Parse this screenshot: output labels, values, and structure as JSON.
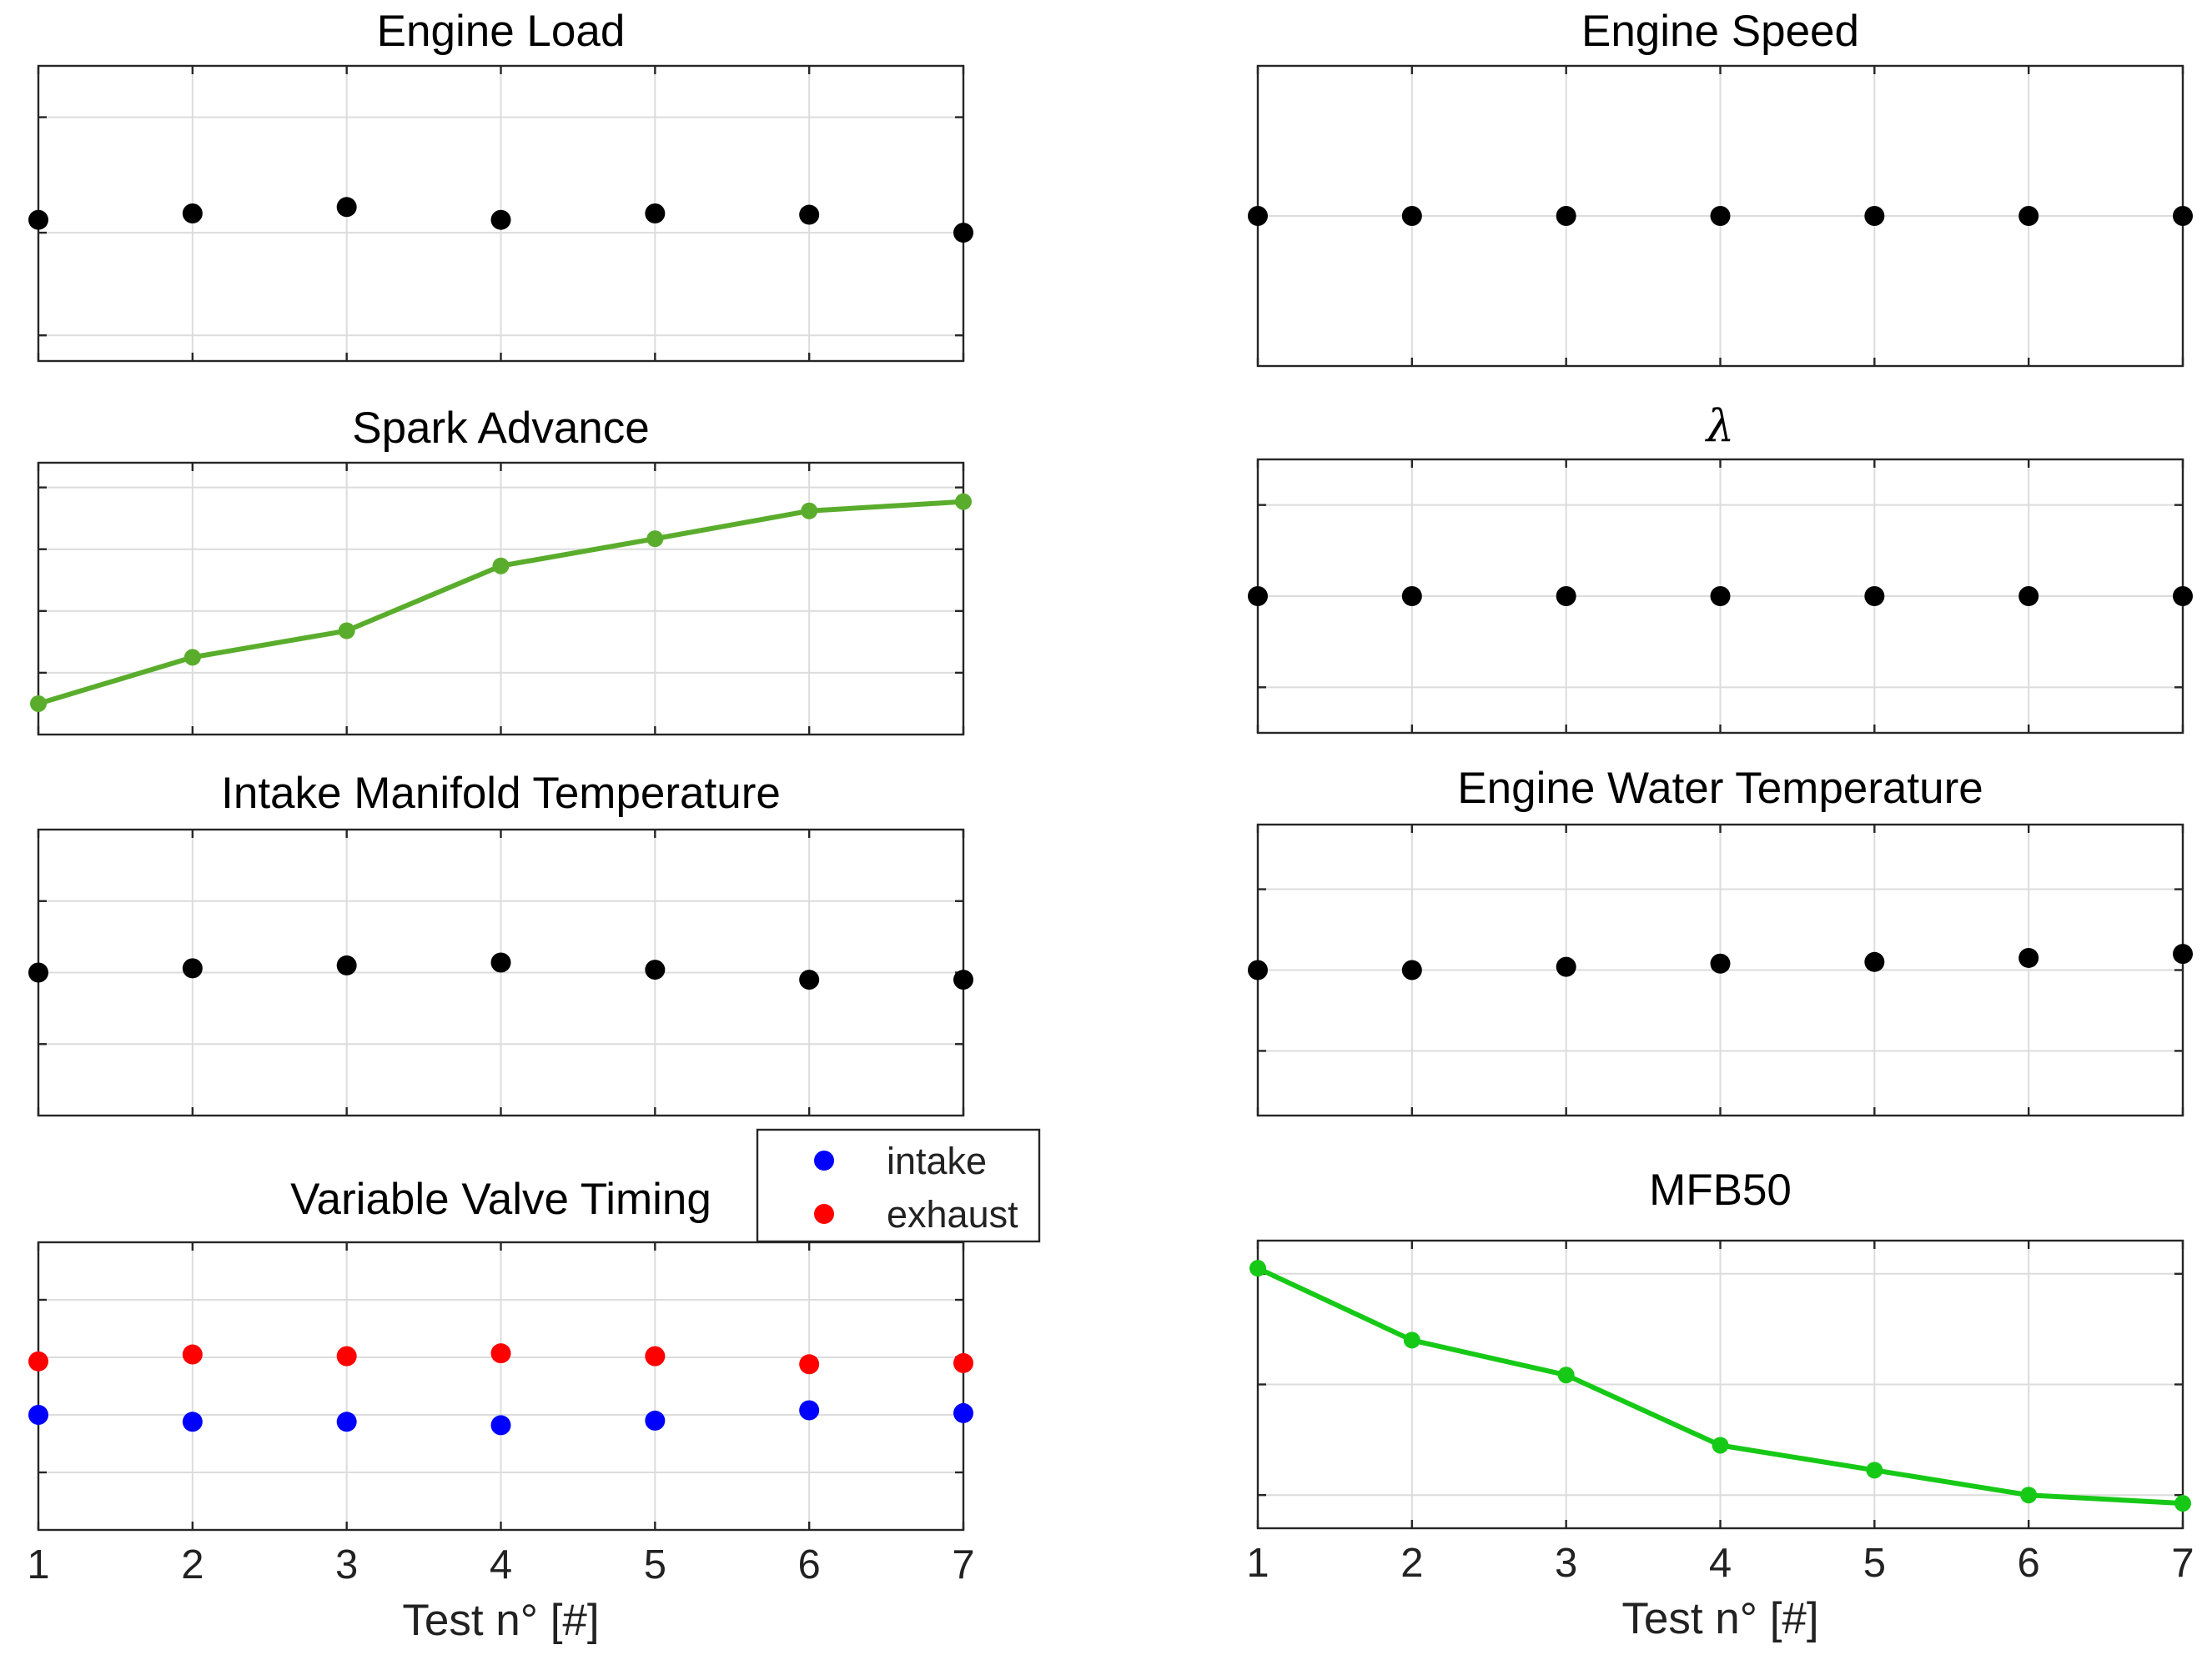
{
  "chart_data": [
    {
      "id": "engine-load",
      "type": "scatter",
      "title": "Engine Load",
      "x": [
        1,
        2,
        3,
        4,
        5,
        6,
        7
      ],
      "series": [
        {
          "name": "Engine Load",
          "color": "#000000",
          "values": [
            0.1,
            0.15,
            0.2,
            0.1,
            0.15,
            0.14,
            0.0
          ]
        }
      ],
      "xlim": [
        1,
        7
      ],
      "ylim": [
        -1.0,
        1.3
      ],
      "yticks": [
        -0.8,
        0,
        0.9
      ],
      "xlabel": "",
      "ylabel": "",
      "grid": true,
      "show_xticklabels": false
    },
    {
      "id": "engine-speed",
      "type": "scatter",
      "title": "Engine Speed",
      "x": [
        1,
        2,
        3,
        4,
        5,
        6,
        7
      ],
      "series": [
        {
          "name": "Engine Speed",
          "color": "#000000",
          "values": [
            0,
            0,
            0,
            0,
            0,
            0,
            0
          ]
        }
      ],
      "xlim": [
        1,
        7
      ],
      "ylim": [
        -1,
        1
      ],
      "yticks": [
        0
      ],
      "xlabel": "",
      "ylabel": "",
      "grid": true,
      "show_xticklabels": false
    },
    {
      "id": "spark-advance",
      "type": "line",
      "title": "Spark Advance",
      "x": [
        1,
        2,
        3,
        4,
        5,
        6,
        7
      ],
      "series": [
        {
          "name": "Spark Advance",
          "color": "#5aad2c",
          "values": [
            0.5,
            1.25,
            1.68,
            2.73,
            3.17,
            3.62,
            3.77
          ]
        }
      ],
      "xlim": [
        1,
        7
      ],
      "ylim": [
        0,
        4.4
      ],
      "yticks": [
        1,
        2,
        3,
        4
      ],
      "xlabel": "",
      "ylabel": "",
      "grid": true,
      "show_xticklabels": false
    },
    {
      "id": "lambda",
      "type": "scatter",
      "title": "λ",
      "x": [
        1,
        2,
        3,
        4,
        5,
        6,
        7
      ],
      "series": [
        {
          "name": "lambda",
          "color": "#000000",
          "values": [
            0,
            0,
            0,
            0,
            0,
            0,
            0
          ]
        }
      ],
      "xlim": [
        1,
        7
      ],
      "ylim": [
        -1.5,
        1.5
      ],
      "yticks": [
        -1,
        0,
        1
      ],
      "xlabel": "",
      "ylabel": "",
      "grid": true,
      "show_xticklabels": false
    },
    {
      "id": "intake-manifold-temperature",
      "type": "scatter",
      "title": "Intake Manifold Temperature",
      "x": [
        1,
        2,
        3,
        4,
        5,
        6,
        7
      ],
      "series": [
        {
          "name": "Intake Manifold Temperature",
          "color": "#000000",
          "values": [
            0.0,
            0.06,
            0.1,
            0.14,
            0.04,
            -0.1,
            -0.1
          ]
        }
      ],
      "xlim": [
        1,
        7
      ],
      "ylim": [
        -2,
        2
      ],
      "yticks": [
        -1,
        0,
        1
      ],
      "xlabel": "",
      "ylabel": "",
      "grid": true,
      "show_xticklabels": false
    },
    {
      "id": "engine-water-temperature",
      "type": "scatter",
      "title": "Engine Water Temperature",
      "x": [
        1,
        2,
        3,
        4,
        5,
        6,
        7
      ],
      "series": [
        {
          "name": "Engine Water Temperature",
          "color": "#000000",
          "values": [
            0.0,
            0.0,
            0.04,
            0.08,
            0.1,
            0.15,
            0.2
          ]
        }
      ],
      "xlim": [
        1,
        7
      ],
      "ylim": [
        -1.8,
        1.8
      ],
      "yticks": [
        -1,
        0,
        1
      ],
      "xlabel": "",
      "ylabel": "",
      "grid": true,
      "show_xticklabels": false
    },
    {
      "id": "variable-valve-timing",
      "type": "scatter",
      "title": "Variable Valve Timing",
      "x": [
        1,
        2,
        3,
        4,
        5,
        6,
        7
      ],
      "series": [
        {
          "name": "intake",
          "color": "#0000ff",
          "values": [
            0.0,
            -0.12,
            -0.12,
            -0.18,
            -0.1,
            0.08,
            0.03
          ]
        },
        {
          "name": "exhaust",
          "color": "#ff0000",
          "values": [
            0.93,
            1.05,
            1.02,
            1.07,
            1.02,
            0.88,
            0.9
          ]
        }
      ],
      "legend": {
        "position": "top-right, outside",
        "entries": [
          "intake",
          "exhaust"
        ]
      },
      "xlim": [
        1,
        7
      ],
      "ylim": [
        -2,
        3
      ],
      "yticks": [
        -1,
        0,
        1,
        2
      ],
      "xticks": [
        1,
        2,
        3,
        4,
        5,
        6,
        7
      ],
      "xlabel": "Test n° [#]",
      "ylabel": "",
      "grid": true,
      "show_xticklabels": true
    },
    {
      "id": "mfb50",
      "type": "line",
      "title": "MFB50",
      "x": [
        1,
        2,
        3,
        4,
        5,
        6,
        7
      ],
      "series": [
        {
          "name": "MFB50",
          "color": "#17c917",
          "values": [
            4.1,
            2.8,
            2.17,
            0.9,
            0.45,
            0.0,
            -0.15
          ]
        }
      ],
      "xlim": [
        1,
        7
      ],
      "ylim": [
        -0.6,
        4.6
      ],
      "yticks": [
        0,
        2,
        4
      ],
      "xticks": [
        1,
        2,
        3,
        4,
        5,
        6,
        7
      ],
      "xlabel": "Test n° [#]",
      "ylabel": "",
      "grid": true,
      "show_xticklabels": true
    }
  ]
}
